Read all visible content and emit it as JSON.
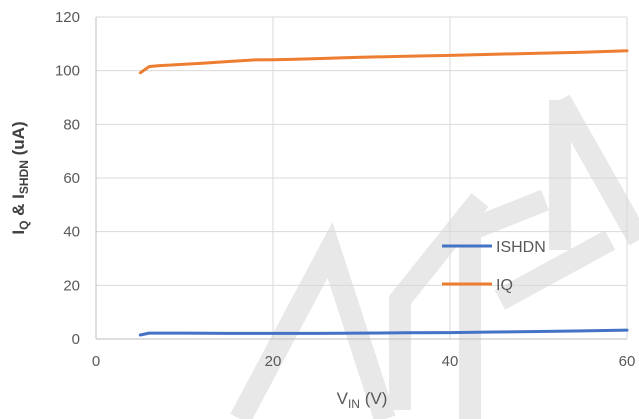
{
  "chart_data": {
    "type": "line",
    "x_axis": {
      "label_main": "V",
      "label_sub": "IN",
      "label_suffix": " (V)",
      "min": 0,
      "max": 60,
      "ticks": [
        0,
        20,
        40,
        60
      ]
    },
    "y_axis": {
      "label_I1": "I",
      "label_sub1": "Q",
      "label_amp": " & I",
      "label_sub2": "SHDN",
      "label_unit": " (uA)",
      "min": 0,
      "max": 120,
      "ticks": [
        0,
        20,
        40,
        60,
        80,
        100,
        120
      ]
    },
    "grid": true,
    "legend_position": "lower-right",
    "series": [
      {
        "name": "ISHDN",
        "color": "#4472C4",
        "x": [
          5,
          6,
          8,
          10,
          15,
          20,
          25,
          30,
          35,
          40,
          45,
          50,
          55,
          60
        ],
        "y": [
          1.5,
          2.2,
          2.2,
          2.2,
          2.1,
          2.1,
          2.1,
          2.2,
          2.3,
          2.4,
          2.6,
          2.8,
          3.0,
          3.3
        ]
      },
      {
        "name": "IQ",
        "color": "#ED7D31",
        "x": [
          5,
          6,
          7,
          9,
          12,
          15,
          18,
          20,
          22,
          25,
          28,
          30,
          35,
          40,
          45,
          50,
          55,
          60
        ],
        "y": [
          99.2,
          101.5,
          101.8,
          102.2,
          102.8,
          103.4,
          104.0,
          104.1,
          104.2,
          104.5,
          104.8,
          105.0,
          105.4,
          105.7,
          106.1,
          106.5,
          106.9,
          107.4
        ]
      }
    ]
  }
}
